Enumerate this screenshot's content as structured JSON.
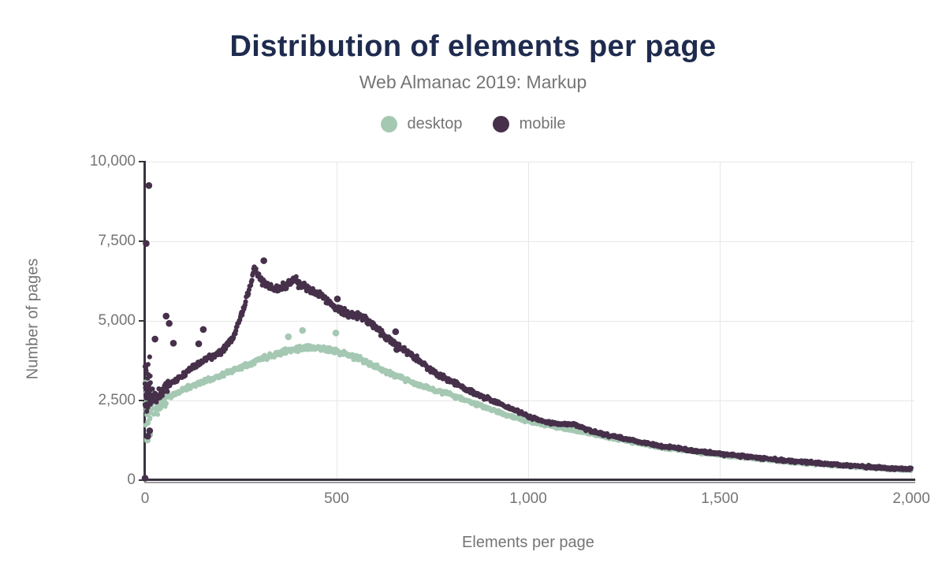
{
  "colors": {
    "title": "#1e2b4e",
    "text": "#757575",
    "grid": "#e7e7e7",
    "axis": "#39333f",
    "background": "#ffffff"
  },
  "chart_data": {
    "type": "scatter",
    "title": "Distribution of elements per page",
    "subtitle": "Web Almanac 2019: Markup",
    "xlabel": "Elements per page",
    "ylabel": "Number of pages",
    "xlim": [
      0,
      2000
    ],
    "ylim": [
      0,
      10000
    ],
    "grid": true,
    "legend_position": "top",
    "x_ticks": [
      0,
      500,
      1000,
      1500,
      2000
    ],
    "x_tick_labels": [
      "0",
      "500",
      "1,000",
      "1,500",
      "2,000"
    ],
    "y_ticks": [
      0,
      2500,
      5000,
      7500,
      10000
    ],
    "y_tick_labels": [
      "0",
      "2,500",
      "5,000",
      "7,500",
      "10,000"
    ],
    "sampling_step": 1.5,
    "seed": 11,
    "left_cluster": {
      "x_max": 14,
      "extra_per_x": 2
    },
    "series": [
      {
        "name": "desktop",
        "color": "#a5c8b3",
        "marker_radius": 3.1,
        "outlier_radius": 4.3,
        "noise": {
          "cluster_amp": 900,
          "early_amp": 260,
          "rel_amp": 0.026,
          "min_amp": 55
        },
        "trend_anchors": [
          [
            0,
            2400
          ],
          [
            14,
            2400
          ],
          [
            22,
            2250
          ],
          [
            32,
            2200
          ],
          [
            45,
            2400
          ],
          [
            60,
            2600
          ],
          [
            80,
            2700
          ],
          [
            100,
            2850
          ],
          [
            130,
            3000
          ],
          [
            160,
            3120
          ],
          [
            200,
            3300
          ],
          [
            250,
            3550
          ],
          [
            300,
            3800
          ],
          [
            350,
            4000
          ],
          [
            390,
            4120
          ],
          [
            430,
            4180
          ],
          [
            470,
            4130
          ],
          [
            510,
            4000
          ],
          [
            550,
            3850
          ],
          [
            590,
            3650
          ],
          [
            630,
            3400
          ],
          [
            670,
            3200
          ],
          [
            710,
            3000
          ],
          [
            750,
            2850
          ],
          [
            800,
            2680
          ],
          [
            850,
            2450
          ],
          [
            900,
            2230
          ],
          [
            950,
            2020
          ],
          [
            1000,
            1850
          ],
          [
            1050,
            1720
          ],
          [
            1100,
            1600
          ],
          [
            1150,
            1500
          ],
          [
            1200,
            1370
          ],
          [
            1250,
            1250
          ],
          [
            1300,
            1130
          ],
          [
            1350,
            1030
          ],
          [
            1400,
            950
          ],
          [
            1450,
            870
          ],
          [
            1500,
            800
          ],
          [
            1550,
            730
          ],
          [
            1600,
            670
          ],
          [
            1650,
            610
          ],
          [
            1700,
            560
          ],
          [
            1750,
            510
          ],
          [
            1800,
            465
          ],
          [
            1850,
            425
          ],
          [
            1900,
            390
          ],
          [
            1950,
            350
          ],
          [
            2000,
            315
          ]
        ],
        "outliers": [
          [
            374,
            4500
          ],
          [
            411,
            4700
          ],
          [
            498,
            4620
          ],
          [
            6,
            1260
          ],
          [
            12,
            1430
          ]
        ]
      },
      {
        "name": "mobile",
        "color": "#46304a",
        "marker_radius": 3.1,
        "outlier_radius": 4.3,
        "noise": {
          "cluster_amp": 1000,
          "early_amp": 280,
          "rel_amp": 0.028,
          "min_amp": 55
        },
        "trend_anchors": [
          [
            0,
            2900
          ],
          [
            14,
            2900
          ],
          [
            22,
            2600
          ],
          [
            32,
            2550
          ],
          [
            45,
            2750
          ],
          [
            60,
            3000
          ],
          [
            80,
            3120
          ],
          [
            100,
            3300
          ],
          [
            130,
            3600
          ],
          [
            160,
            3800
          ],
          [
            200,
            4050
          ],
          [
            230,
            4500
          ],
          [
            255,
            5300
          ],
          [
            270,
            5900
          ],
          [
            285,
            6700
          ],
          [
            300,
            6350
          ],
          [
            315,
            6150
          ],
          [
            340,
            5950
          ],
          [
            365,
            6100
          ],
          [
            390,
            6300
          ],
          [
            410,
            6100
          ],
          [
            435,
            5950
          ],
          [
            460,
            5800
          ],
          [
            480,
            5600
          ],
          [
            500,
            5400
          ],
          [
            530,
            5250
          ],
          [
            570,
            5100
          ],
          [
            600,
            4800
          ],
          [
            635,
            4450
          ],
          [
            665,
            4180
          ],
          [
            700,
            3900
          ],
          [
            740,
            3500
          ],
          [
            775,
            3250
          ],
          [
            825,
            2950
          ],
          [
            875,
            2650
          ],
          [
            925,
            2400
          ],
          [
            975,
            2150
          ],
          [
            1000,
            2000
          ],
          [
            1030,
            1870
          ],
          [
            1060,
            1790
          ],
          [
            1090,
            1760
          ],
          [
            1120,
            1740
          ],
          [
            1150,
            1600
          ],
          [
            1200,
            1430
          ],
          [
            1250,
            1300
          ],
          [
            1300,
            1170
          ],
          [
            1350,
            1070
          ],
          [
            1400,
            980
          ],
          [
            1450,
            900
          ],
          [
            1500,
            830
          ],
          [
            1550,
            760
          ],
          [
            1600,
            700
          ],
          [
            1650,
            640
          ],
          [
            1700,
            590
          ],
          [
            1750,
            540
          ],
          [
            1800,
            490
          ],
          [
            1850,
            450
          ],
          [
            1900,
            410
          ],
          [
            1950,
            370
          ],
          [
            2000,
            335
          ]
        ],
        "outliers": [
          [
            3,
            7430
          ],
          [
            10,
            9250
          ],
          [
            55,
            5150
          ],
          [
            63,
            4920
          ],
          [
            26,
            4430
          ],
          [
            74,
            4300
          ],
          [
            140,
            4280
          ],
          [
            152,
            4730
          ],
          [
            310,
            6890
          ],
          [
            502,
            5690
          ],
          [
            654,
            4660
          ],
          [
            657,
            4100
          ],
          [
            7,
            1380
          ],
          [
            12,
            1550
          ],
          [
            0,
            60
          ]
        ]
      }
    ]
  }
}
